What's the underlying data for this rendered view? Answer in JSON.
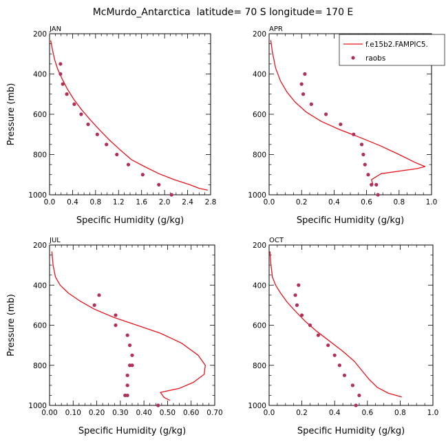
{
  "figure_title": "McMurdo_Antarctica  latitude= 70 S longitude= 170 E",
  "colors": {
    "model": "#e8111a",
    "obs": "#b0305a"
  },
  "legend": {
    "model_label": "f.e15b2.FAMPIC5.",
    "obs_label": "raobs"
  },
  "chart_data": [
    {
      "type": "line",
      "panel": "JAN",
      "xlabel": "Specific Humidity (g/kg)",
      "ylabel": "Pressure (mb)",
      "xlim": [
        0,
        2.8
      ],
      "ylim": [
        1000,
        200
      ],
      "xticks": [
        0.0,
        0.4,
        0.8,
        1.2,
        1.6,
        2.0,
        2.4,
        2.8
      ],
      "xtick_labels": [
        "0.0",
        "0.4",
        "0.8",
        "1.2",
        "1.6",
        "2.0",
        "2.4",
        "2.8"
      ],
      "yticks": [
        200,
        400,
        600,
        800,
        1000
      ],
      "ytick_labels": [
        "200",
        "400",
        "600",
        "800",
        "1000"
      ],
      "series": [
        {
          "name": "f.e15b2.FAMPIC5.",
          "style": "line",
          "x": [
            0.02,
            0.05,
            0.09,
            0.14,
            0.22,
            0.31,
            0.42,
            0.55,
            0.7,
            0.86,
            1.03,
            1.22,
            1.42,
            1.65,
            1.9,
            2.17,
            2.44,
            2.6,
            2.75
          ],
          "y": [
            233,
            280,
            330,
            375,
            425,
            475,
            525,
            575,
            625,
            675,
            725,
            775,
            825,
            860,
            895,
            925,
            950,
            968,
            977
          ]
        },
        {
          "name": "raobs",
          "style": "points",
          "x": [
            0.19,
            0.19,
            0.23,
            0.3,
            0.43,
            0.55,
            0.67,
            0.83,
            0.99,
            1.17,
            1.37,
            1.62,
            1.9,
            2.12
          ],
          "y": [
            350,
            400,
            450,
            500,
            550,
            600,
            650,
            700,
            750,
            800,
            850,
            900,
            950,
            1000
          ]
        }
      ]
    },
    {
      "type": "line",
      "panel": "APR",
      "xlabel": "Specific Humidity (g/kg)",
      "ylabel": "",
      "xlim": [
        0,
        1.0
      ],
      "ylim": [
        1000,
        200
      ],
      "xticks": [
        0.0,
        0.2,
        0.4,
        0.6,
        0.8,
        1.0
      ],
      "xtick_labels": [
        "0.0",
        "0.2",
        "0.4",
        "0.6",
        "0.8",
        "1.0"
      ],
      "yticks": [
        200,
        400,
        600,
        800,
        1000
      ],
      "ytick_labels": [
        "200",
        "400",
        "600",
        "800",
        "1000"
      ],
      "series": [
        {
          "name": "f.e15b2.FAMPIC5.",
          "style": "line",
          "x": [
            0.01,
            0.02,
            0.04,
            0.07,
            0.11,
            0.16,
            0.23,
            0.32,
            0.43,
            0.55,
            0.68,
            0.8,
            0.9,
            0.96,
            0.91,
            0.69,
            0.63,
            0.64
          ],
          "y": [
            232,
            290,
            370,
            435,
            490,
            540,
            590,
            635,
            675,
            712,
            755,
            800,
            840,
            860,
            870,
            895,
            925,
            950
          ]
        },
        {
          "name": "raobs",
          "style": "points",
          "x": [
            0.22,
            0.2,
            0.21,
            0.26,
            0.35,
            0.44,
            0.52,
            0.57,
            0.58,
            0.59,
            0.61,
            0.63,
            0.66,
            0.67
          ],
          "y": [
            400,
            450,
            500,
            550,
            600,
            650,
            700,
            750,
            800,
            850,
            900,
            950,
            950,
            1000
          ]
        }
      ]
    },
    {
      "type": "line",
      "panel": "JUL",
      "xlabel": "Specific Humidity (g/kg)",
      "ylabel": "Pressure (mb)",
      "xlim": [
        0,
        0.7
      ],
      "ylim": [
        1000,
        200
      ],
      "xticks": [
        0.0,
        0.1,
        0.2,
        0.3,
        0.4,
        0.5,
        0.6,
        0.7
      ],
      "xtick_labels": [
        "0.00",
        "0.10",
        "0.20",
        "0.30",
        "0.40",
        "0.50",
        "0.60",
        "0.70"
      ],
      "yticks": [
        200,
        400,
        600,
        800,
        1000
      ],
      "ytick_labels": [
        "200",
        "400",
        "600",
        "800",
        "1000"
      ],
      "series": [
        {
          "name": "f.e15b2.FAMPIC5.",
          "style": "line",
          "x": [
            0.01,
            0.015,
            0.025,
            0.045,
            0.08,
            0.13,
            0.19,
            0.27,
            0.37,
            0.47,
            0.56,
            0.63,
            0.66,
            0.655,
            0.61,
            0.55,
            0.47,
            0.485,
            0.51
          ],
          "y": [
            232,
            300,
            360,
            400,
            440,
            480,
            520,
            560,
            600,
            640,
            690,
            750,
            800,
            845,
            885,
            915,
            935,
            960,
            975
          ]
        },
        {
          "name": "raobs",
          "style": "points",
          "x": [
            0.21,
            0.19,
            0.28,
            0.28,
            0.33,
            0.34,
            0.35,
            0.34,
            0.35,
            0.33,
            0.33,
            0.32,
            0.33,
            0.46
          ],
          "y": [
            450,
            500,
            550,
            600,
            650,
            700,
            750,
            800,
            800,
            850,
            900,
            950,
            950,
            1000
          ]
        }
      ]
    },
    {
      "type": "line",
      "panel": "OCT",
      "xlabel": "Specific Humidity (g/kg)",
      "ylabel": "",
      "xlim": [
        0,
        1.0
      ],
      "ylim": [
        1000,
        200
      ],
      "xticks": [
        0.0,
        0.2,
        0.4,
        0.6,
        0.8,
        1.0
      ],
      "xtick_labels": [
        "0.0",
        "0.2",
        "0.4",
        "0.6",
        "0.8",
        "1.0"
      ],
      "yticks": [
        200,
        400,
        600,
        800,
        1000
      ],
      "ytick_labels": [
        "200",
        "400",
        "600",
        "800",
        "1000"
      ],
      "series": [
        {
          "name": "f.e15b2.FAMPIC5.",
          "style": "line",
          "x": [
            0.005,
            0.01,
            0.02,
            0.04,
            0.07,
            0.11,
            0.16,
            0.22,
            0.29,
            0.37,
            0.45,
            0.52,
            0.57,
            0.61,
            0.66,
            0.73,
            0.81
          ],
          "y": [
            232,
            290,
            360,
            400,
            440,
            485,
            530,
            580,
            630,
            680,
            730,
            780,
            830,
            870,
            910,
            940,
            958
          ]
        },
        {
          "name": "raobs",
          "style": "points",
          "x": [
            0.18,
            0.16,
            0.17,
            0.2,
            0.25,
            0.3,
            0.36,
            0.4,
            0.43,
            0.46,
            0.51,
            0.55,
            0.53
          ],
          "y": [
            400,
            450,
            500,
            550,
            600,
            650,
            700,
            750,
            800,
            850,
            900,
            950,
            1000
          ]
        }
      ]
    }
  ]
}
